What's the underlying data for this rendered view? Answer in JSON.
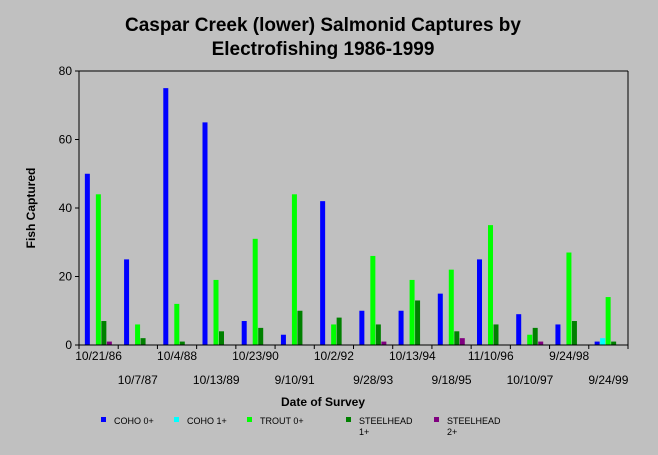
{
  "chart_data": {
    "type": "bar",
    "title_lines": [
      "Caspar Creek (lower) Salmonid Captures by",
      "Electrofishing 1986-1999"
    ],
    "xlabel": "Date of Survey",
    "ylabel": "Fish Captured",
    "ylim": [
      0,
      80
    ],
    "yticks": [
      0,
      20,
      40,
      60,
      80
    ],
    "categories": [
      "10/21/86",
      "10/7/87",
      "10/4/88",
      "10/13/89",
      "10/23/90",
      "9/10/91",
      "10/2/92",
      "9/28/93",
      "10/13/94",
      "9/18/95",
      "11/10/96",
      "10/10/97",
      "9/24/98",
      "9/24/99"
    ],
    "series": [
      {
        "name": "COHO 0+",
        "color": "#0000ff",
        "values": [
          50,
          25,
          75,
          65,
          7,
          3,
          42,
          10,
          10,
          15,
          25,
          9,
          6,
          1
        ]
      },
      {
        "name": "COHO 1+",
        "color": "#00ffff",
        "values": [
          0,
          0,
          0,
          0,
          0,
          0,
          0,
          0,
          0,
          0,
          0,
          0,
          0,
          2
        ]
      },
      {
        "name": "TROUT 0+",
        "color": "#00ff00",
        "values": [
          44,
          6,
          12,
          19,
          31,
          44,
          6,
          26,
          19,
          22,
          35,
          3,
          27,
          14
        ]
      },
      {
        "name": "STEELHEAD 1+",
        "color": "#008000",
        "values": [
          7,
          2,
          1,
          4,
          5,
          10,
          8,
          6,
          13,
          4,
          6,
          5,
          7,
          1
        ]
      },
      {
        "name": "STEELHEAD 2+",
        "color": "#800080",
        "values": [
          1,
          0,
          0,
          0,
          0,
          0,
          0,
          1,
          0,
          2,
          0,
          1,
          0,
          0
        ]
      }
    ],
    "legend_lines": [
      [
        "COHO 0+"
      ],
      [
        "COHO 1+"
      ],
      [
        "TROUT 0+"
      ],
      [
        "STEELHEAD",
        "1+"
      ],
      [
        "STEELHEAD",
        "2+"
      ]
    ],
    "legend_position": "bottom",
    "grid": false
  }
}
